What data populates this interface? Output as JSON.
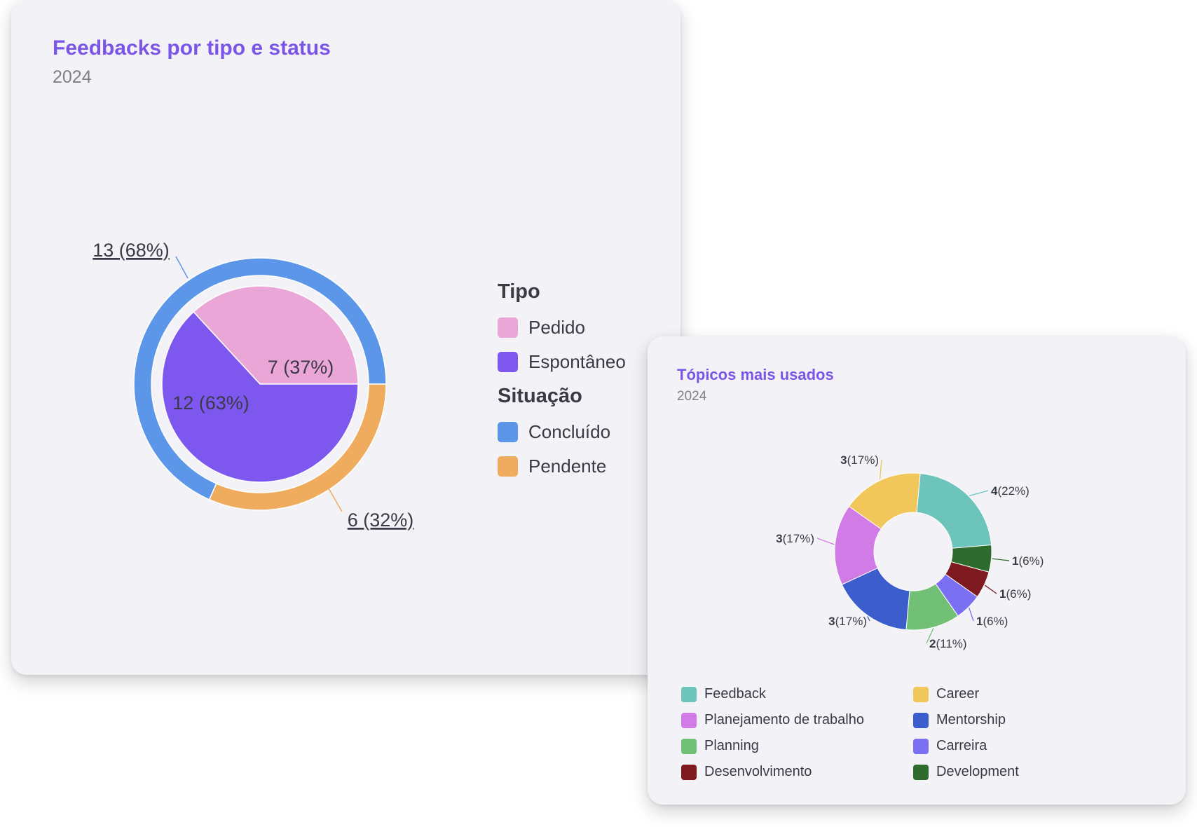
{
  "chart_data": [
    {
      "type": "pie",
      "title": "Feedbacks por tipo e status",
      "subtitle": "2024",
      "inner_ring": {
        "legend_title": "Tipo",
        "slices": [
          {
            "name": "Pedido",
            "value": 7,
            "label": "7 (37%)",
            "color": "#eba6d8"
          },
          {
            "name": "Espontâneo",
            "value": 12,
            "label": "12 (63%)",
            "color": "#7e57ee"
          }
        ]
      },
      "outer_ring": {
        "legend_title": "Situação",
        "slices": [
          {
            "name": "Concluído",
            "value": 13,
            "label": "13 (68%)",
            "color": "#5b96e8"
          },
          {
            "name": "Pendente",
            "value": 6,
            "label": "6 (32%)",
            "color": "#efac5f"
          }
        ]
      },
      "legend_placement": "right"
    },
    {
      "type": "pie",
      "title": "Tópicos mais usados",
      "subtitle": "2024",
      "donut": true,
      "slices": [
        {
          "name": "Feedback",
          "value": 4,
          "pct": "(22%)",
          "color": "#6cc4bb"
        },
        {
          "name": "Development",
          "value": 1,
          "pct": "(6%)",
          "color": "#2e6b2e"
        },
        {
          "name": "Desenvolvimento",
          "value": 1,
          "pct": "(6%)",
          "color": "#7e1a1f"
        },
        {
          "name": "Carreira",
          "value": 1,
          "pct": "(6%)",
          "color": "#7b6ff2"
        },
        {
          "name": "Planning",
          "value": 2,
          "pct": "(11%)",
          "color": "#72bf76"
        },
        {
          "name": "Mentorship",
          "value": 3,
          "pct": "(17%)",
          "color": "#3c5ecc"
        },
        {
          "name": "Planejamento de trabalho",
          "value": 3,
          "pct": "(17%)",
          "color": "#d17ce6"
        },
        {
          "name": "Career",
          "value": 3,
          "pct": "(17%)",
          "color": "#f1c65a"
        }
      ],
      "legend_order": [
        "Feedback",
        "Career",
        "Planejamento de trabalho",
        "Mentorship",
        "Planning",
        "Carreira",
        "Desenvolvimento",
        "Development"
      ],
      "legend_placement": "bottom"
    }
  ]
}
